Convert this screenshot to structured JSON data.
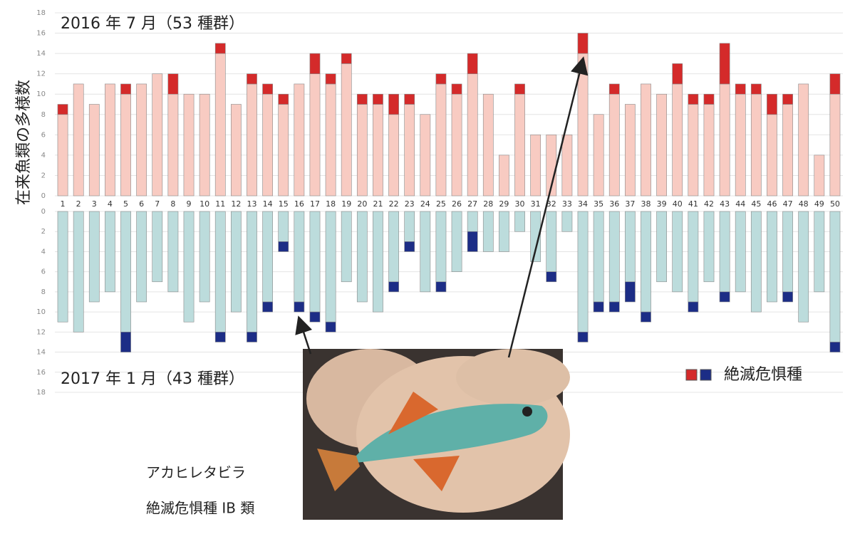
{
  "chart_data": [
    {
      "type": "bar",
      "stacked": true,
      "title": "2016 年 7 月（53 種群）",
      "ylabel": "在来魚類の多様数",
      "categories": [
        "1",
        "2",
        "3",
        "4",
        "5",
        "6",
        "7",
        "8",
        "9",
        "10",
        "11",
        "12",
        "13",
        "14",
        "15",
        "16",
        "17",
        "18",
        "19",
        "20",
        "21",
        "22",
        "23",
        "24",
        "25",
        "26",
        "27",
        "28",
        "29",
        "30",
        "31",
        "32",
        "33",
        "34",
        "35",
        "36",
        "37",
        "38",
        "39",
        "40",
        "41",
        "42",
        "43",
        "44",
        "45",
        "46",
        "47",
        "48",
        "49",
        "50"
      ],
      "series": [
        {
          "color": "#f8cbc2",
          "values": [
            8,
            11,
            9,
            11,
            10,
            11,
            12,
            10,
            10,
            10,
            14,
            9,
            11,
            10,
            9,
            11,
            12,
            11,
            13,
            9,
            9,
            8,
            9,
            8,
            11,
            10,
            12,
            10,
            4,
            10,
            6,
            6,
            6,
            14,
            8,
            10,
            9,
            11,
            10,
            11,
            9,
            9,
            11,
            10,
            10,
            8,
            9,
            11,
            4,
            10
          ]
        },
        {
          "name": "絶滅危惧種",
          "color": "#d42a2a",
          "values": [
            1,
            0,
            0,
            0,
            1,
            0,
            0,
            2,
            0,
            0,
            1,
            0,
            1,
            1,
            1,
            0,
            2,
            1,
            1,
            1,
            1,
            2,
            1,
            0,
            1,
            1,
            2,
            0,
            0,
            1,
            0,
            0,
            0,
            2,
            0,
            1,
            0,
            0,
            0,
            2,
            1,
            1,
            4,
            1,
            1,
            2,
            1,
            0,
            0,
            2
          ]
        }
      ],
      "ylim": [
        0,
        18
      ],
      "yticks": [
        0,
        2,
        4,
        6,
        8,
        10,
        12,
        14,
        16,
        18
      ],
      "grid": true
    },
    {
      "type": "bar",
      "stacked": true,
      "inverted": true,
      "title": "2017 年 1 月（43 種群）",
      "series": [
        {
          "color": "#bcdcdc",
          "values": [
            11,
            12,
            9,
            8,
            12,
            9,
            7,
            8,
            11,
            9,
            12,
            10,
            12,
            9,
            3,
            9,
            10,
            11,
            7,
            9,
            10,
            7,
            3,
            8,
            7,
            6,
            2,
            4,
            4,
            2,
            5,
            6,
            2,
            12,
            9,
            9,
            7,
            10,
            7,
            8,
            9,
            7,
            8,
            8,
            10,
            9,
            8,
            11,
            8,
            13
          ]
        },
        {
          "color": "#1c2d86",
          "values": [
            0,
            0,
            0,
            0,
            2,
            0,
            0,
            0,
            0,
            0,
            1,
            0,
            1,
            1,
            1,
            1,
            1,
            1,
            0,
            0,
            0,
            1,
            1,
            0,
            1,
            0,
            2,
            0,
            0,
            0,
            0,
            1,
            0,
            1,
            1,
            1,
            2,
            1,
            0,
            0,
            1,
            0,
            1,
            0,
            0,
            0,
            1,
            0,
            0,
            1
          ]
        }
      ],
      "ylim": [
        0,
        18
      ],
      "yticks": [
        0,
        2,
        4,
        6,
        8,
        10,
        12,
        14,
        16,
        18
      ],
      "grid": true
    }
  ],
  "photo": {
    "species": "アカヒレタビラ",
    "status": "絶滅危惧種 IB 類"
  }
}
